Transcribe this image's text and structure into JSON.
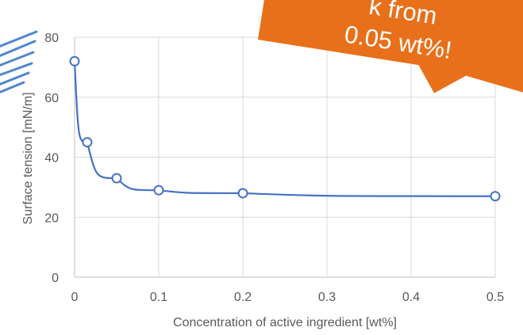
{
  "chart_data": {
    "type": "line",
    "title": "",
    "xlabel": "Concentration of active ingredient [wt%]",
    "ylabel": "Surface tension [mN/m]",
    "xlim": [
      0,
      0.5
    ],
    "ylim": [
      0,
      80
    ],
    "x_ticks": [
      "0",
      "0.1",
      "0.2",
      "0.3",
      "0.4",
      "0.5"
    ],
    "y_ticks": [
      "0",
      "20",
      "40",
      "60",
      "80"
    ],
    "grid": true,
    "legend": "none",
    "series": [
      {
        "color": "#4472c4",
        "marker": "open-circle",
        "x": [
          0,
          0.015,
          0.05,
          0.1,
          0.2,
          0.5
        ],
        "y": [
          72,
          45,
          33,
          29,
          28,
          27
        ]
      }
    ]
  },
  "annotation": {
    "lines": [
      "k from",
      "0.05 wt%!"
    ],
    "background": "#e8701a",
    "text_color": "#ffffff"
  }
}
